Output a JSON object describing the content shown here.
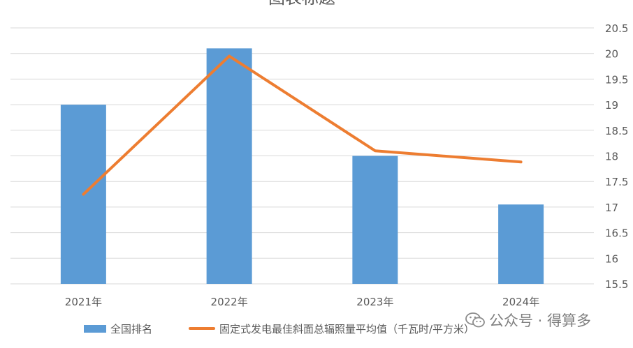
{
  "chart_data": {
    "type": "bar",
    "title": "图表标题",
    "categories": [
      "2021年",
      "2022年",
      "2023年",
      "2024年"
    ],
    "series": [
      {
        "name": "全国排名",
        "kind": "bar",
        "color": "#5b9bd5",
        "values": [
          19.0,
          20.1,
          18.0,
          17.05
        ]
      },
      {
        "name": "固定式发电最佳斜面总辐照量平均值（千瓦时/平方米）",
        "kind": "line",
        "color": "#ed7d31",
        "values": [
          17.25,
          19.95,
          18.1,
          17.88
        ]
      }
    ],
    "y_axis": {
      "position": "right",
      "min": 15.5,
      "max": 20.5,
      "ticks": [
        15.5,
        16,
        16.5,
        17,
        17.5,
        18,
        18.5,
        19,
        19.5,
        20,
        20.5
      ]
    },
    "grid": true,
    "legend_position": "bottom"
  },
  "watermark": {
    "text": "公众号 · 得算多",
    "icon": "wechat-icon"
  },
  "colors": {
    "gridline": "#d9d9d9",
    "axis_text": "#595959"
  }
}
